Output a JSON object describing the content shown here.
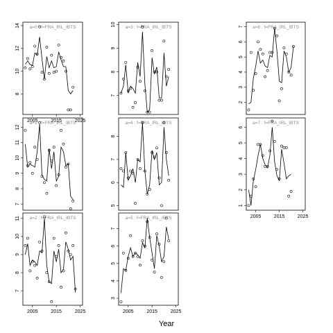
{
  "figure": {
    "xlabel": "Year"
  },
  "chart_data": [
    {
      "type": "line",
      "panel": 0,
      "title": "a=0 : f=FRA_IRL_IBTS",
      "xlim": [
        2001,
        2026
      ],
      "ylim": [
        6.2,
        14.3
      ],
      "yticks": [
        8,
        10,
        12,
        14
      ],
      "xticks": [
        2005,
        2015,
        2025
      ],
      "show_xticks": true,
      "points": {
        "x": [
          2002,
          2003,
          2004,
          2005,
          2006,
          2007,
          2008,
          2009,
          2010,
          2011,
          2012,
          2013,
          2014,
          2015,
          2016,
          2017,
          2018,
          2019,
          2020,
          2021,
          2022,
          2023
        ],
        "y": [
          10.3,
          11.1,
          10.2,
          10.4,
          12.2,
          11.5,
          13.9,
          9.9,
          9.3,
          12.1,
          9.8,
          11.4,
          9.9,
          10.0,
          12.3,
          11.2,
          10.9,
          10.0,
          6.6,
          6.6,
          8.6,
          null
        ]
      },
      "fit": {
        "x": [
          2002,
          2003,
          2004,
          2005,
          2006,
          2007,
          2008,
          2009,
          2010,
          2011,
          2012,
          2013,
          2014,
          2015,
          2016,
          2017,
          2018,
          2019,
          2020,
          2021,
          2022,
          2023
        ],
        "y": [
          10.6,
          10.9,
          10.6,
          10.5,
          11.6,
          11.4,
          13.0,
          11.1,
          9.3,
          11.3,
          10.3,
          10.9,
          10.3,
          10.4,
          11.7,
          11.0,
          10.4,
          10.4,
          8.3,
          8.0,
          8.3,
          null
        ]
      }
    },
    {
      "type": "line",
      "panel": 1,
      "title": "a=1 : f=FRA_IRL_IBTS",
      "xlim": [
        2001,
        2026
      ],
      "ylim": [
        6.6,
        12.6
      ],
      "yticks": [
        7,
        8,
        9,
        10,
        11,
        12
      ],
      "xticks": [
        2005,
        2015,
        2025
      ],
      "show_xticks": false,
      "points": {
        "x": [
          2002,
          2003,
          2004,
          2005,
          2006,
          2007,
          2008,
          2009,
          2010,
          2011,
          2012,
          2013,
          2014,
          2015,
          2016,
          2017,
          2018,
          2019,
          2020,
          2021,
          2022,
          2023
        ],
        "y": [
          11.8,
          9.5,
          9.7,
          9.0,
          10.7,
          9.9,
          12.3,
          8.8,
          8.4,
          7.7,
          10.5,
          9.8,
          10.7,
          8.2,
          8.9,
          11.8,
          10.9,
          9.4,
          9.6,
          6.7,
          7.2,
          null
        ]
      },
      "fit": {
        "x": [
          2002,
          2003,
          2004,
          2005,
          2006,
          2007,
          2008,
          2009,
          2010,
          2011,
          2012,
          2013,
          2014,
          2015,
          2016,
          2017,
          2018,
          2019,
          2020,
          2021,
          2022,
          2023
        ],
        "y": [
          10.9,
          9.4,
          9.6,
          9.5,
          9.4,
          10.4,
          12.2,
          8.9,
          8.6,
          8.5,
          10.6,
          9.3,
          10.4,
          8.5,
          8.8,
          10.7,
          10.4,
          9.5,
          9.6,
          7.5,
          7.3,
          null
        ]
      }
    },
    {
      "type": "line",
      "panel": 2,
      "title": "a=2 : f=FRA_IRL_IBTS",
      "xlim": [
        2001,
        2026
      ],
      "ylim": [
        6.2,
        11.3
      ],
      "yticks": [
        7,
        8,
        9,
        10,
        11
      ],
      "xticks": [
        2005,
        2015,
        2025
      ],
      "show_xticks": true,
      "points": {
        "x": [
          2002,
          2003,
          2004,
          2005,
          2006,
          2007,
          2008,
          2009,
          2010,
          2011,
          2012,
          2013,
          2014,
          2015,
          2016,
          2017,
          2018,
          2019,
          2020,
          2021,
          2022,
          2023
        ],
        "y": [
          9.5,
          9.9,
          8.1,
          8.6,
          8.4,
          7.7,
          9.7,
          9.2,
          11.1,
          8.0,
          7.5,
          6.4,
          9.9,
          8.9,
          9.5,
          7.2,
          8.1,
          10.2,
          9.2,
          9.0,
          9.5,
          7.1
        ]
      },
      "fit": {
        "x": [
          2002,
          2003,
          2004,
          2005,
          2006,
          2007,
          2008,
          2009,
          2010,
          2011,
          2012,
          2013,
          2014,
          2015,
          2016,
          2017,
          2018,
          2019,
          2020,
          2021,
          2022,
          2023
        ],
        "y": [
          9.0,
          9.6,
          8.4,
          8.7,
          8.6,
          8.4,
          9.2,
          9.1,
          11.0,
          8.4,
          7.5,
          7.4,
          9.2,
          8.6,
          9.3,
          8.0,
          8.2,
          9.7,
          9.3,
          8.7,
          8.9,
          6.9
        ]
      }
    },
    {
      "type": "line",
      "panel": 3,
      "title": "a=3 : f=FRA_IRL_IBTS",
      "xlim": [
        2001,
        2026
      ],
      "ylim": [
        6.2,
        10.1
      ],
      "yticks": [
        7,
        8,
        9,
        10
      ],
      "xticks": [
        2005,
        2015,
        2025
      ],
      "show_xticks": false,
      "points": {
        "x": [
          2002,
          2003,
          2004,
          2005,
          2006,
          2007,
          2008,
          2009,
          2010,
          2011,
          2012,
          2013,
          2014,
          2015,
          2016,
          2017,
          2018,
          2019,
          2020,
          2021,
          2022,
          2023
        ],
        "y": [
          7.1,
          7.7,
          8.4,
          7.2,
          7.3,
          6.5,
          6.7,
          8.2,
          7.6,
          9.9,
          7.2,
          6.3,
          6.3,
          8.9,
          8.0,
          8.0,
          6.8,
          6.8,
          9.3,
          7.8,
          8.1,
          null
        ]
      },
      "fit": {
        "x": [
          2002,
          2003,
          2004,
          2005,
          2006,
          2007,
          2008,
          2009,
          2010,
          2011,
          2012,
          2013,
          2014,
          2015,
          2016,
          2017,
          2018,
          2019,
          2020,
          2021,
          2022,
          2023
        ],
        "y": [
          7.1,
          7.4,
          8.3,
          7.1,
          7.4,
          7.3,
          7.1,
          8.4,
          7.8,
          9.7,
          7.5,
          6.3,
          6.4,
          8.6,
          7.9,
          8.2,
          6.9,
          6.9,
          8.8,
          7.4,
          7.8,
          null
        ]
      }
    },
    {
      "type": "line",
      "panel": 4,
      "title": "a=4 : f=FRA_IRL_IBTS",
      "xlim": [
        2001,
        2026
      ],
      "ylim": [
        4.8,
        8.8
      ],
      "yticks": [
        5,
        6,
        7,
        8
      ],
      "xticks": [
        2005,
        2015,
        2025
      ],
      "show_xticks": false,
      "points": {
        "x": [
          2002,
          2003,
          2004,
          2005,
          2006,
          2007,
          2008,
          2009,
          2010,
          2011,
          2012,
          2013,
          2014,
          2015,
          2016,
          2017,
          2018,
          2019,
          2020,
          2021,
          2022,
          2023
        ],
        "y": [
          6.6,
          6.5,
          7.3,
          6.2,
          6.5,
          6.4,
          5.1,
          7.0,
          6.6,
          8.6,
          6.5,
          5.5,
          5.7,
          7.3,
          7.1,
          7.5,
          6.2,
          5.0,
          8.6,
          7.3,
          6.1,
          null
        ]
      },
      "fit": {
        "x": [
          2002,
          2003,
          2004,
          2005,
          2006,
          2007,
          2008,
          2009,
          2010,
          2011,
          2012,
          2013,
          2014,
          2015,
          2016,
          2017,
          2018,
          2019,
          2020,
          2021,
          2022,
          2023
        ],
        "y": [
          5.9,
          5.8,
          7.3,
          6.1,
          6.3,
          6.6,
          6.0,
          7.0,
          6.9,
          8.6,
          6.5,
          5.5,
          5.9,
          7.4,
          7.0,
          7.3,
          5.9,
          6.0,
          8.4,
          7.0,
          6.3,
          null
        ]
      }
    },
    {
      "type": "line",
      "panel": 5,
      "title": "a=5 : f=FRA_IRL_IBTS",
      "xlim": [
        2001,
        2026
      ],
      "ylim": [
        2.6,
        7.9
      ],
      "yticks": [
        3,
        4,
        5,
        6,
        7
      ],
      "xticks": [
        2005,
        2015,
        2025
      ],
      "show_xticks": true,
      "points": {
        "x": [
          2002,
          2003,
          2004,
          2005,
          2006,
          2007,
          2008,
          2009,
          2010,
          2011,
          2012,
          2013,
          2014,
          2015,
          2016,
          2017,
          2018,
          2019,
          2020,
          2021,
          2022,
          2023
        ],
        "y": [
          2.8,
          5.6,
          4.6,
          5.3,
          6.6,
          5.4,
          5.6,
          5.4,
          4.9,
          6.3,
          6.0,
          7.4,
          6.5,
          5.2,
          4.5,
          6.7,
          6.1,
          4.2,
          5.1,
          7.6,
          6.3,
          null
        ]
      },
      "fit": {
        "x": [
          2002,
          2003,
          2004,
          2005,
          2006,
          2007,
          2008,
          2009,
          2010,
          2011,
          2012,
          2013,
          2014,
          2015,
          2016,
          2017,
          2018,
          2019,
          2020,
          2021,
          2022,
          2023
        ],
        "y": [
          3.3,
          4.7,
          4.6,
          5.4,
          5.9,
          5.4,
          5.6,
          5.5,
          5.3,
          6.2,
          5.9,
          7.6,
          6.5,
          5.6,
          4.7,
          6.6,
          6.0,
          5.1,
          5.4,
          7.1,
          6.4,
          null
        ]
      }
    },
    {
      "type": "line",
      "panel": 6,
      "title": "a=6 : f=FRA_IRL_IBTS",
      "xlim": [
        2001,
        2026
      ],
      "ylim": [
        1.2,
        7.3
      ],
      "yticks": [
        2,
        3,
        4,
        5,
        6,
        7
      ],
      "xticks": [
        2005,
        2015,
        2025
      ],
      "show_xticks": false,
      "points": {
        "x": [
          2002,
          2003,
          2004,
          2005,
          2006,
          2007,
          2008,
          2009,
          2010,
          2011,
          2012,
          2013,
          2014,
          2015,
          2016,
          2017,
          2018,
          2019,
          2020,
          2021,
          2022,
          2023
        ],
        "y": [
          1.5,
          5.3,
          2.8,
          3.9,
          6.0,
          5.5,
          5.2,
          3.7,
          4.1,
          5.3,
          5.3,
          6.9,
          6.4,
          2.1,
          2.9,
          5.6,
          5.2,
          4.0,
          3.8,
          5.7,
          null,
          null
        ]
      },
      "fit": {
        "x": [
          2002,
          2003,
          2004,
          2005,
          2006,
          2007,
          2008,
          2009,
          2010,
          2011,
          2012,
          2013,
          2014,
          2015,
          2016,
          2017,
          2018,
          2019,
          2020,
          2021,
          2022,
          2023
        ],
        "y": [
          1.9,
          2.0,
          3.6,
          4.4,
          5.4,
          4.6,
          4.8,
          4.4,
          4.3,
          5.1,
          5.0,
          6.9,
          5.4,
          3.4,
          3.3,
          5.4,
          5.0,
          4.0,
          4.3,
          5.7,
          null,
          null
        ]
      }
    },
    {
      "type": "line",
      "panel": 7,
      "title": "a=7 : f=FRA_IRL_IBTS",
      "xlim": [
        2001,
        2026
      ],
      "ylim": [
        0.7,
        6.6
      ],
      "yticks": [
        1,
        2,
        3,
        4,
        5,
        6
      ],
      "xticks": [
        2005,
        2015,
        2025
      ],
      "show_xticks": true,
      "points": {
        "x": [
          2002,
          2003,
          2004,
          2005,
          2006,
          2007,
          2008,
          2009,
          2010,
          2011,
          2012,
          2013,
          2014,
          2015,
          2016,
          2017,
          2018,
          2019,
          2020,
          2021,
          2022,
          2023
        ],
        "y": [
          1.0,
          1.6,
          2.7,
          2.2,
          4.9,
          4.9,
          4.2,
          3.5,
          3.5,
          4.5,
          6.4,
          5.1,
          3.3,
          2.7,
          4.8,
          4.7,
          4.7,
          1.6,
          1.9,
          null,
          null,
          null
        ]
      },
      "fit": {
        "x": [
          2002,
          2003,
          2004,
          2005,
          2006,
          2007,
          2008,
          2009,
          2010,
          2011,
          2012,
          2013,
          2014,
          2015,
          2016,
          2017,
          2018,
          2019,
          2020,
          2021,
          2022,
          2023
        ],
        "y": [
          2.0,
          1.0,
          2.6,
          3.3,
          4.2,
          4.9,
          4.0,
          3.6,
          3.4,
          4.2,
          6.0,
          3.8,
          2.9,
          2.6,
          4.6,
          3.7,
          2.7,
          2.9,
          3.0,
          null,
          null,
          null
        ]
      }
    }
  ]
}
